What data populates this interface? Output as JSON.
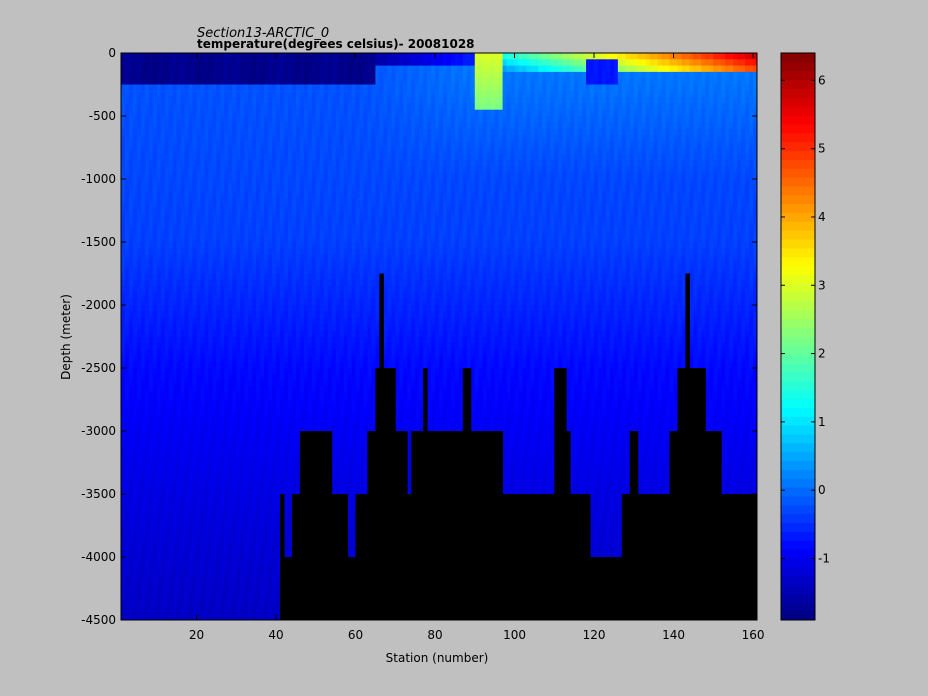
{
  "chart_data": {
    "type": "heatmap",
    "title_line1": "Section13-ARCTIC_0",
    "title_line2": "temperature(degrees  celsius)- 20081028",
    "xlabel": "Station (number)",
    "ylabel": "Depth (meter)",
    "xlim": [
      1,
      161
    ],
    "ylim": [
      -4500,
      0
    ],
    "xticks": [
      20,
      40,
      60,
      80,
      100,
      120,
      140,
      160
    ],
    "yticks": [
      0,
      -500,
      -1000,
      -1500,
      -2000,
      -2500,
      -3000,
      -3500,
      -4000,
      -4500
    ],
    "colorbar": {
      "range": [
        -1.9,
        6.4
      ],
      "ticks": [
        -1,
        0,
        1,
        2,
        3,
        4,
        5,
        6
      ],
      "colormap": "jet"
    },
    "field_description": "Sea temperature along the section: ~-1.8 C surface layer (stations 1-60), warm Atlantic layer up to ~6 C near surface (stations 90-160), bottom water ~-0.8 to -1.2 C; black = sea floor",
    "bottom_depth_profile": [
      {
        "station": 1,
        "depth": -4500
      },
      {
        "station": 40,
        "depth": -4500
      },
      {
        "station": 41,
        "depth": -3500
      },
      {
        "station": 42,
        "depth": -4000
      },
      {
        "station": 44,
        "depth": -3500
      },
      {
        "station": 46,
        "depth": -3000
      },
      {
        "station": 54,
        "depth": -3500
      },
      {
        "station": 58,
        "depth": -4000
      },
      {
        "station": 60,
        "depth": -3500
      },
      {
        "station": 63,
        "depth": -3000
      },
      {
        "station": 65,
        "depth": -2500
      },
      {
        "station": 66,
        "depth": -1750
      },
      {
        "station": 67,
        "depth": -2500
      },
      {
        "station": 70,
        "depth": -3000
      },
      {
        "station": 73,
        "depth": -3500
      },
      {
        "station": 74,
        "depth": -3000
      },
      {
        "station": 77,
        "depth": -2500
      },
      {
        "station": 78,
        "depth": -3000
      },
      {
        "station": 87,
        "depth": -2500
      },
      {
        "station": 89,
        "depth": -3000
      },
      {
        "station": 97,
        "depth": -3500
      },
      {
        "station": 110,
        "depth": -2500
      },
      {
        "station": 113,
        "depth": -3000
      },
      {
        "station": 114,
        "depth": -3500
      },
      {
        "station": 119,
        "depth": -4000
      },
      {
        "station": 127,
        "depth": -3500
      },
      {
        "station": 129,
        "depth": -3000
      },
      {
        "station": 131,
        "depth": -3500
      },
      {
        "station": 139,
        "depth": -3000
      },
      {
        "station": 141,
        "depth": -2500
      },
      {
        "station": 143,
        "depth": -1750
      },
      {
        "station": 144,
        "depth": -2500
      },
      {
        "station": 148,
        "depth": -3000
      },
      {
        "station": 152,
        "depth": -3500
      },
      {
        "station": 161,
        "depth": -3500
      }
    ]
  }
}
